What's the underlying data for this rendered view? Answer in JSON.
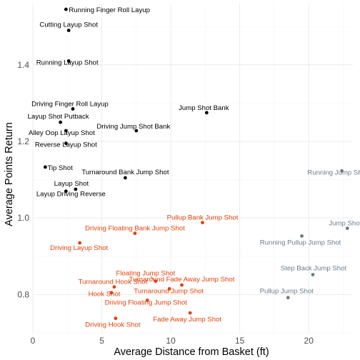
{
  "chart_data": {
    "type": "scatter",
    "title": "",
    "xlabel": "Average Distance from Basket (ft)",
    "ylabel": "Average Points Return",
    "xlim": [
      0,
      23.2
    ],
    "ylim": [
      0.7,
      1.56
    ],
    "x_ticks": [
      0,
      5,
      10,
      15,
      20
    ],
    "y_ticks": [
      0.8,
      1.0,
      1.2,
      1.4
    ],
    "grid": true,
    "legend": "none",
    "colors": {
      "black": "#000000",
      "orange": "#e6400a",
      "gray": "#6b7b86"
    },
    "points": [
      {
        "name": "Running Finger Roll Layup",
        "x": 2.4,
        "y": 1.545,
        "color": "black"
      },
      {
        "name": "Cutting Layup Shot",
        "x": 2.6,
        "y": 1.49,
        "color": "black"
      },
      {
        "name": "Running Layup Shot",
        "x": 2.6,
        "y": 1.41,
        "color": "black"
      },
      {
        "name": "Driving Finger Roll Layup",
        "x": 2.9,
        "y": 1.285,
        "color": "black"
      },
      {
        "name": "Jump Shot Bank",
        "x": 12.6,
        "y": 1.275,
        "color": "black"
      },
      {
        "name": "Layup Shot Putback",
        "x": 2.0,
        "y": 1.25,
        "color": "black"
      },
      {
        "name": "Driving Jump Shot Bank",
        "x": 7.5,
        "y": 1.228,
        "color": "black"
      },
      {
        "name": "Alley Oop Layup Shot",
        "x": 2.4,
        "y": 1.228,
        "color": "black"
      },
      {
        "name": "Reverse Layup Shot",
        "x": 2.4,
        "y": 1.195,
        "color": "black"
      },
      {
        "name": "Tip Shot",
        "x": 0.9,
        "y": 1.133,
        "color": "black"
      },
      {
        "name": "Turnaround Bank Jump Shot",
        "x": 6.7,
        "y": 1.105,
        "color": "black"
      },
      {
        "name": "Layup Shot",
        "x": 3.1,
        "y": 1.075,
        "color": "black"
      },
      {
        "name": "Layup Driving Reverse",
        "x": 2.4,
        "y": 1.07,
        "color": "black"
      },
      {
        "name": "Pullup Bank Jump Shot",
        "x": 12.3,
        "y": 0.988,
        "color": "orange"
      },
      {
        "name": "Driving Floating Bank Jump Shot",
        "x": 7.4,
        "y": 0.96,
        "color": "orange"
      },
      {
        "name": "Driving Layup Shot",
        "x": 3.4,
        "y": 0.935,
        "color": "orange"
      },
      {
        "name": "Floating Jump Shot",
        "x": 8.9,
        "y": 0.835,
        "color": "orange"
      },
      {
        "name": "Turnaround Fade Away Jump Shot",
        "x": 10.8,
        "y": 0.825,
        "color": "orange"
      },
      {
        "name": "Turnaround Hook Shot",
        "x": 5.9,
        "y": 0.82,
        "color": "orange"
      },
      {
        "name": "Turnaround Jump Shot",
        "x": 9.9,
        "y": 0.815,
        "color": "orange"
      },
      {
        "name": "Hook Shot",
        "x": 5.7,
        "y": 0.805,
        "color": "orange"
      },
      {
        "name": "Driving Floating Jump Shot",
        "x": 8.3,
        "y": 0.785,
        "color": "orange"
      },
      {
        "name": "Fade Away Jump Shot",
        "x": 11.4,
        "y": 0.752,
        "color": "orange"
      },
      {
        "name": "Driving Hook Shot",
        "x": 6.0,
        "y": 0.738,
        "color": "orange"
      },
      {
        "name": "Running Jump Shot",
        "x": 22.4,
        "y": 1.123,
        "color": "gray"
      },
      {
        "name": "Jump Shot",
        "x": 22.8,
        "y": 0.973,
        "color": "gray"
      },
      {
        "name": "Running Pullup Jump Shot",
        "x": 19.5,
        "y": 0.953,
        "color": "gray"
      },
      {
        "name": "Step Back Jump Shot",
        "x": 20.3,
        "y": 0.852,
        "color": "gray"
      },
      {
        "name": "Pullup Jump Shot",
        "x": 18.5,
        "y": 0.792,
        "color": "gray"
      }
    ]
  }
}
